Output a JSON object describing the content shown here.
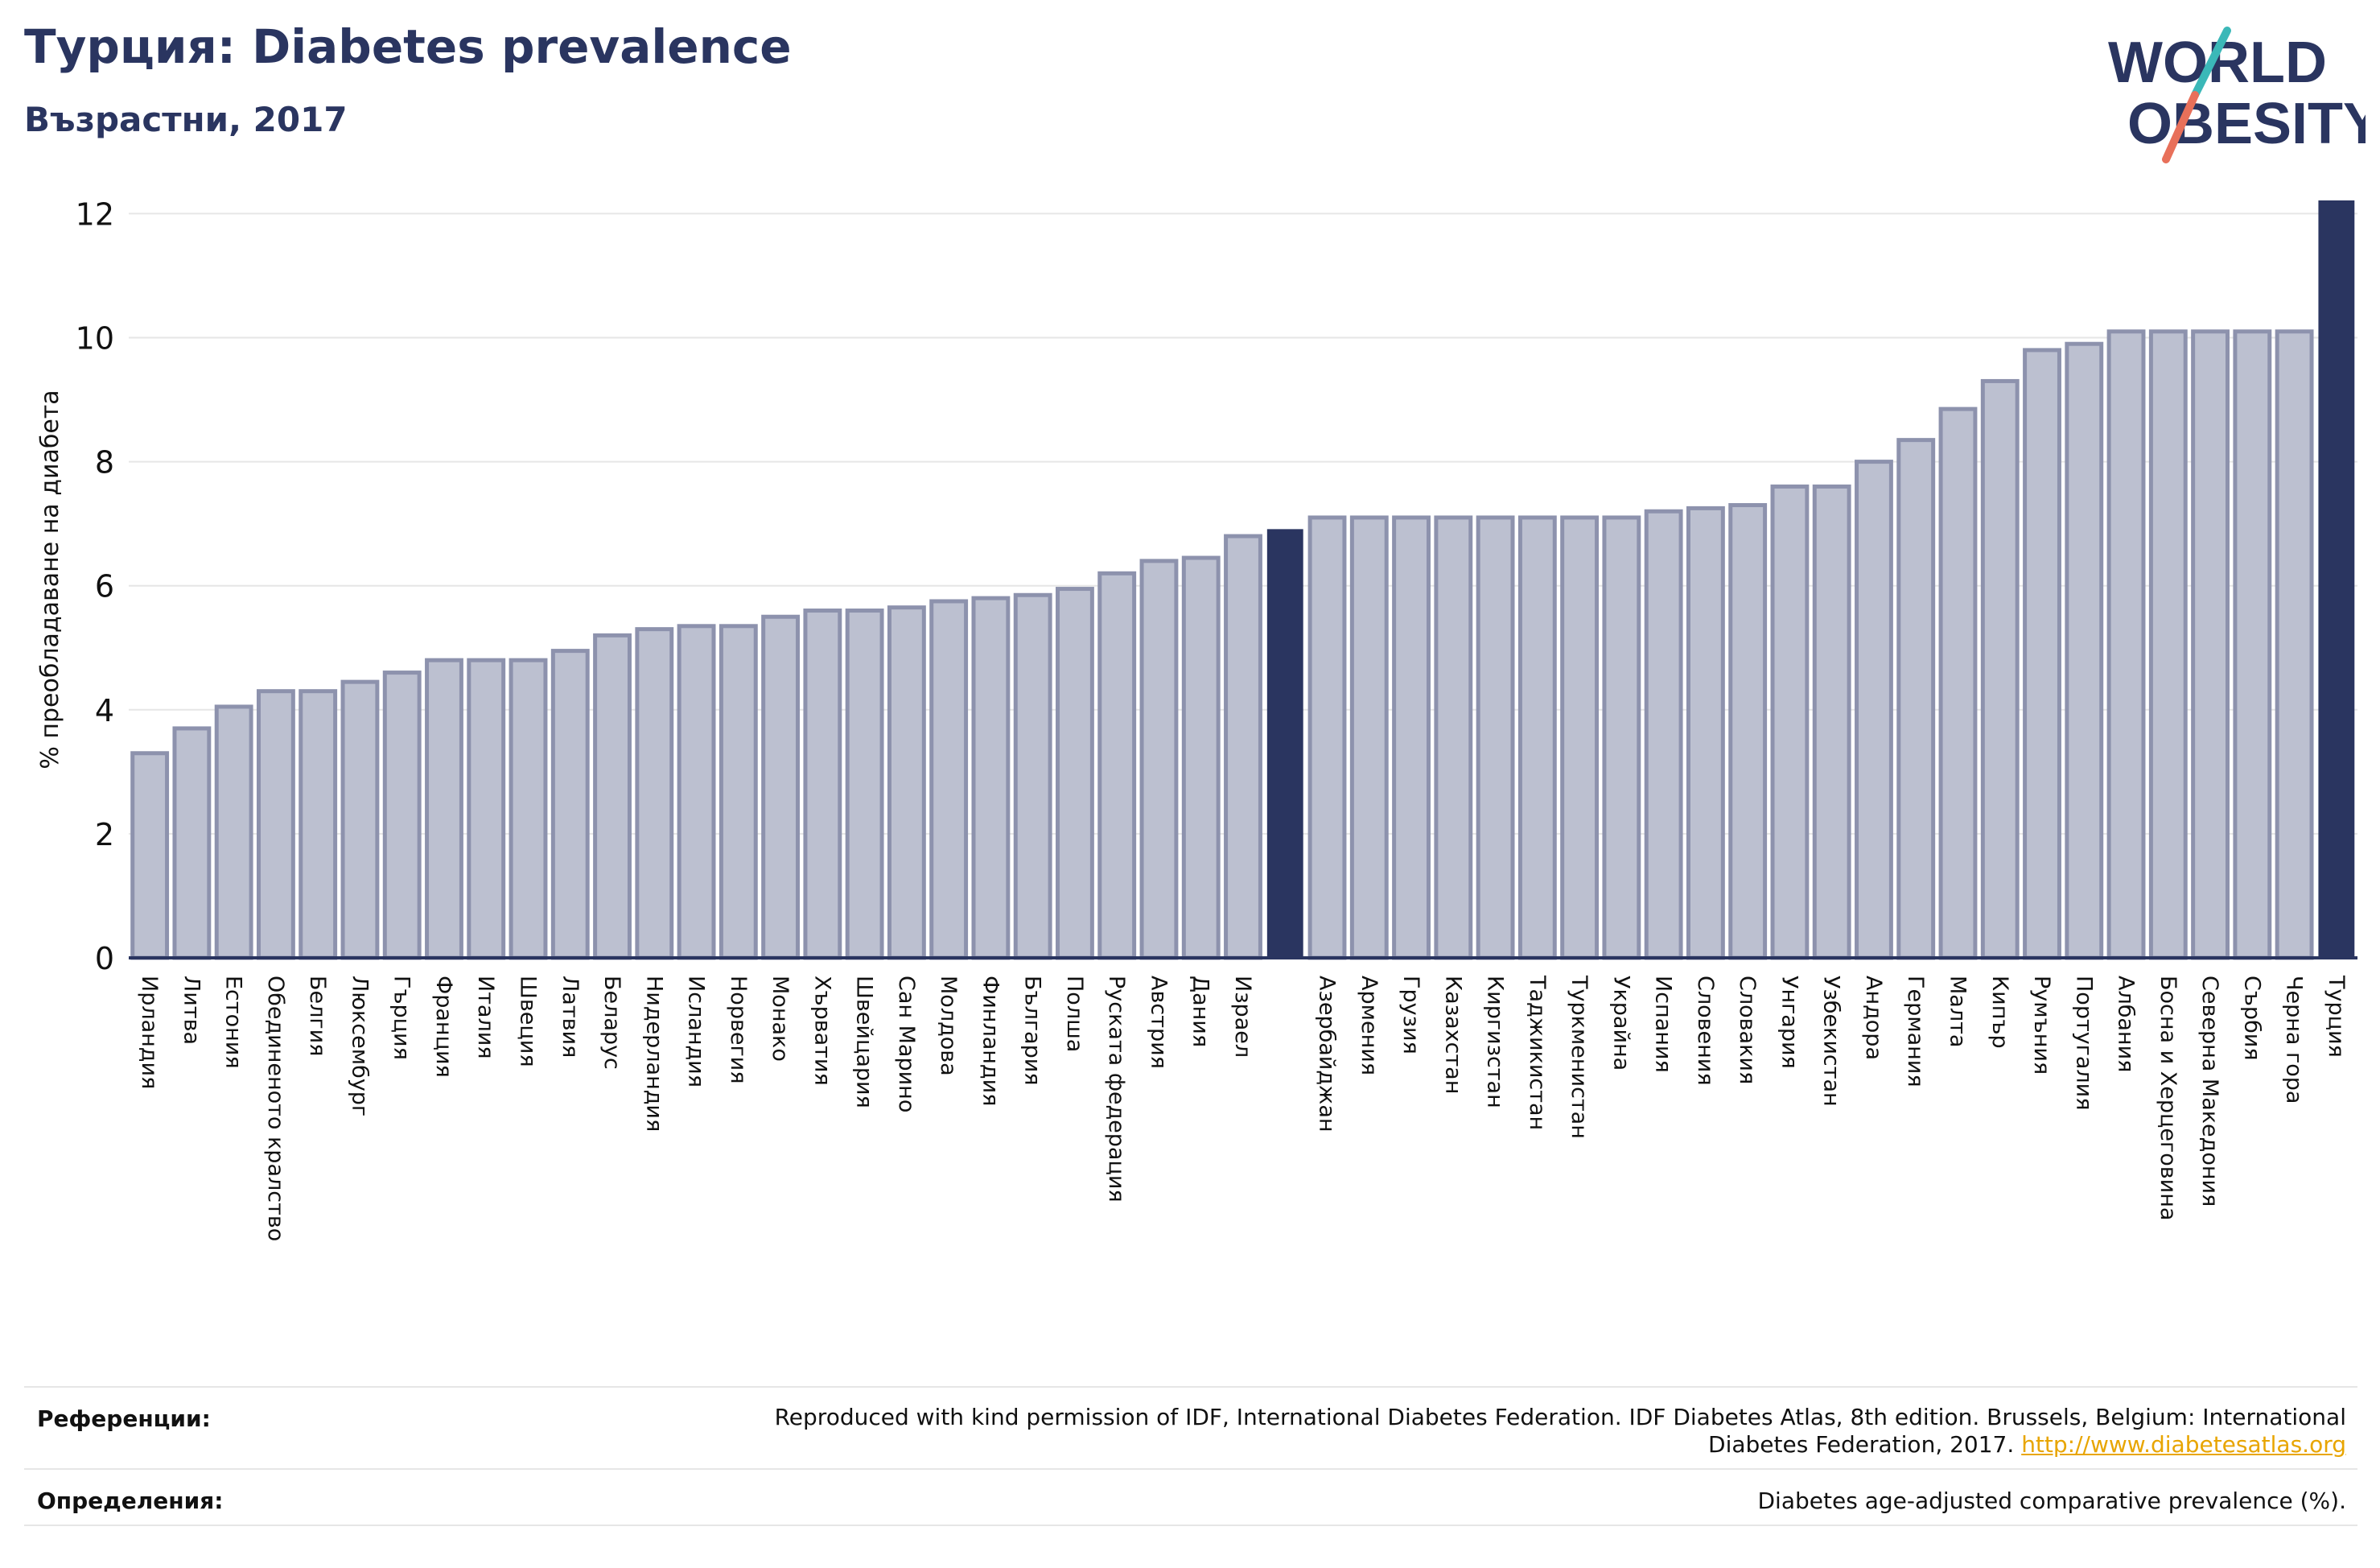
{
  "header": {
    "title": "Турция: Diabetes prevalence",
    "subtitle": "Възрастни, 2017"
  },
  "logo": {
    "line1": "WORLD",
    "line2": "OBESITY",
    "color_text": "#2a3560",
    "color_accent1": "#3bb8b8",
    "color_accent2": "#e8705a"
  },
  "chart_data": {
    "type": "bar",
    "ylabel": "% преобладаване на диабета",
    "ylim": [
      0,
      12.2
    ],
    "yticks": [
      0,
      2,
      4,
      6,
      8,
      10,
      12
    ],
    "grid": true,
    "categories": [
      "Ирландия",
      "Литва",
      "Естония",
      "Обединеното кралство",
      "Белгия",
      "Люксембург",
      "Гърция",
      "Франция",
      "Италия",
      "Швеция",
      "Латвия",
      "Беларус",
      "Нидерландия",
      "Исландия",
      "Норвегия",
      "Монако",
      "Хърватия",
      "Швейцария",
      "Сан Марино",
      "Молдова",
      "Финландия",
      "България",
      "Полша",
      "Руската федерация",
      "Австрия",
      "Дания",
      "Израел",
      "",
      "Азербайджан",
      "Армения",
      "Грузия",
      "Казахстан",
      "Киргизстан",
      "Таджикистан",
      "Туркменистан",
      "Украйна",
      "Испания",
      "Словения",
      "Словакия",
      "Унгария",
      "Узбекистан",
      "Андора",
      "Германия",
      "Малта",
      "Кипър",
      "Румъния",
      "Португалия",
      "Албания",
      "Босна и Херцеговина",
      "Северна Македония",
      "Сърбия",
      "Черна гора",
      "Турция"
    ],
    "values": [
      3.3,
      3.7,
      4.05,
      4.3,
      4.3,
      4.45,
      4.6,
      4.8,
      4.8,
      4.8,
      4.95,
      5.2,
      5.3,
      5.35,
      5.35,
      5.5,
      5.6,
      5.6,
      5.65,
      5.75,
      5.8,
      5.85,
      5.95,
      6.2,
      6.4,
      6.45,
      6.8,
      6.9,
      7.1,
      7.1,
      7.1,
      7.1,
      7.1,
      7.1,
      7.1,
      7.1,
      7.2,
      7.25,
      7.3,
      7.6,
      7.6,
      8.0,
      8.35,
      8.85,
      9.3,
      9.8,
      9.9,
      10.1,
      10.1,
      10.1,
      10.1,
      10.1,
      12.2
    ],
    "highlight_indices": [
      27,
      52
    ],
    "colors": {
      "bar": "#bcc0d0",
      "bar_border": "#8d92ad",
      "highlight": "#2a3560",
      "grid": "#e6e6e6",
      "axis": "#2a3560"
    }
  },
  "footer": {
    "references_label": "Референции:",
    "references_text": "Reproduced with kind permission of IDF, International Diabetes Federation. IDF Diabetes Atlas, 8th edition. Brussels, Belgium: International",
    "references_text2": "Diabetes Federation, 2017.",
    "references_link": "http://www.diabetesatlas.org",
    "definitions_label": "Определения:",
    "definitions_text": "Diabetes age-adjusted comparative prevalence (%)."
  }
}
